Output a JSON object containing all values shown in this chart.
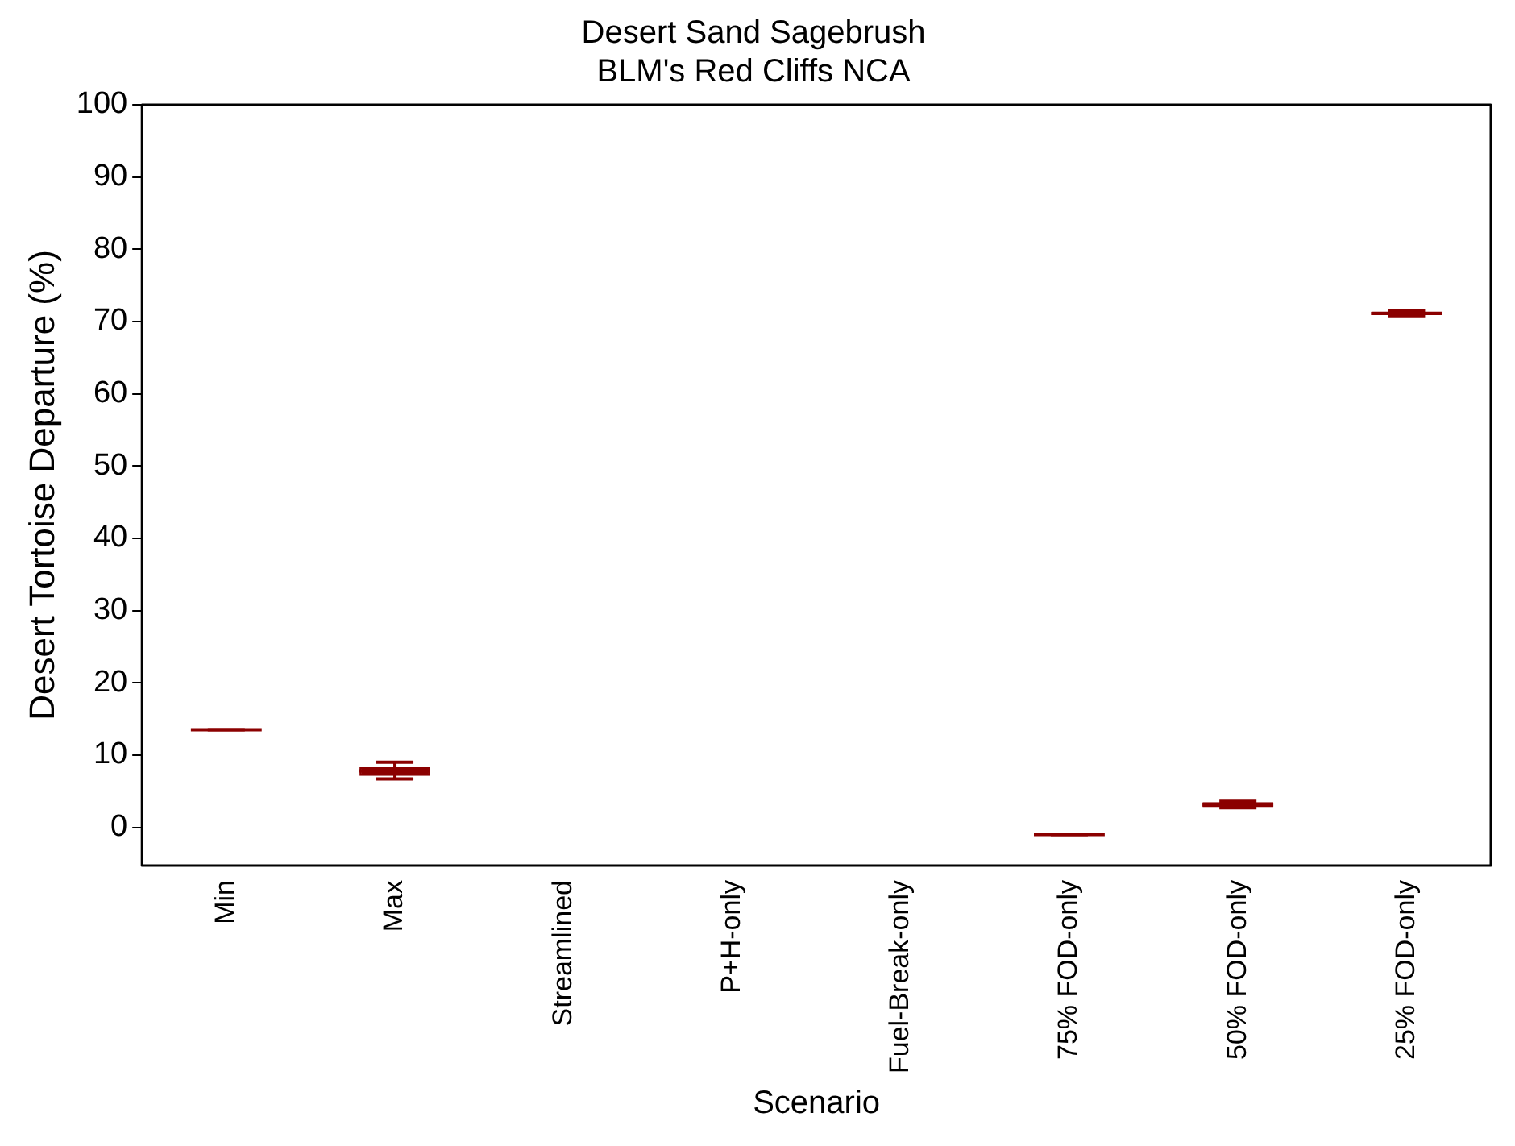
{
  "chart_data": {
    "type": "box",
    "title": "Desert Sand Sagebrush",
    "subtitle": "BLM's Red Cliffs NCA",
    "xlabel": "Scenario",
    "ylabel": "Desert Tortoise Departure (%)",
    "categories": [
      "Min",
      "Max",
      "Streamlined",
      "P+H-only",
      "Fuel-Break-only",
      "75% FOD-only",
      "50% FOD-only",
      "25% FOD-only"
    ],
    "color": "#8b0000",
    "boxes": [
      {
        "low": 13.5,
        "q1": 13.5,
        "median": 13.5,
        "q3": 13.5,
        "high": 13.5
      },
      {
        "low": 6.7,
        "q1": 7.1,
        "median": 7.8,
        "q3": 8.3,
        "high": 9.0
      },
      null,
      null,
      null,
      {
        "low": -1.0,
        "q1": -1.0,
        "median": -1.0,
        "q3": -1.0,
        "high": -1.0
      },
      {
        "low": 2.7,
        "q1": 2.8,
        "median": 3.1,
        "q3": 3.5,
        "high": 3.6
      },
      {
        "low": 70.8,
        "q1": 70.9,
        "median": 71.1,
        "q3": 71.4,
        "high": 71.5
      }
    ],
    "ylim": [
      -5.3,
      100
    ],
    "yticks": [
      0,
      10,
      20,
      30,
      40,
      50,
      60,
      70,
      80,
      90,
      100
    ],
    "grid": false,
    "legend": false
  }
}
